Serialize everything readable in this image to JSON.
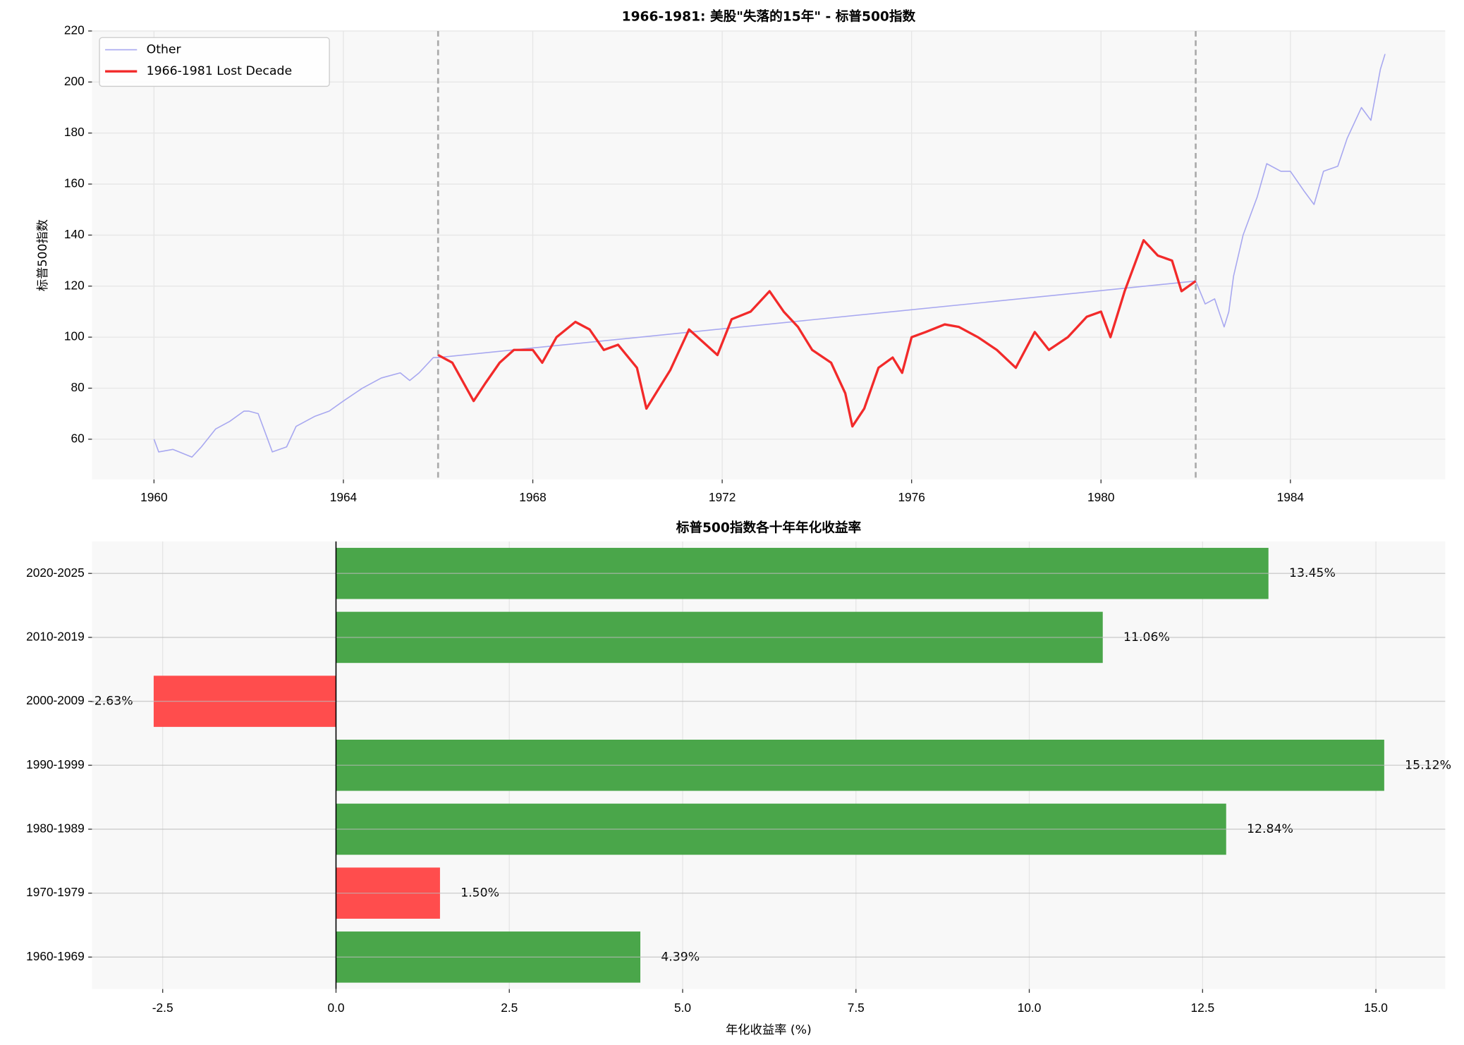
{
  "chart_data": [
    {
      "type": "line",
      "title": "1966-1981: 美股\"失落的15年\" - 标普500指数",
      "ylabel": "标普500指数",
      "xlim": [
        1958.69,
        1987.27
      ],
      "xticks": [
        1960,
        1964,
        1968,
        1972,
        1976,
        1980,
        1984
      ],
      "ylim": [
        44.2,
        220
      ],
      "yticks": [
        60,
        80,
        100,
        120,
        140,
        160,
        180,
        200,
        220
      ],
      "grid": true,
      "legend": "upper left",
      "vlines": [
        1966,
        1982
      ],
      "series": [
        {
          "name": "Other",
          "color": "#a8a8f0",
          "x": [
            1960.0,
            1960.1,
            1960.4,
            1960.8,
            1961.0,
            1961.3,
            1961.6,
            1961.9,
            1962.0,
            1962.2,
            1962.4,
            1962.5,
            1962.8,
            1963.0,
            1963.4,
            1963.7,
            1964.0,
            1964.4,
            1964.8,
            1965.2,
            1965.4,
            1965.6,
            1965.9,
            1966.0,
            1982.0,
            1982.2,
            1982.4,
            1982.6,
            1982.7,
            1982.8,
            1983.0,
            1983.3,
            1983.5,
            1983.8,
            1984.0,
            1984.3,
            1984.5,
            1984.7,
            1985.0,
            1985.2,
            1985.5,
            1985.7,
            1985.9,
            1986.0
          ],
          "values": [
            60,
            55,
            56,
            53,
            57,
            64,
            67,
            71,
            71,
            70,
            60,
            55,
            57,
            65,
            69,
            71,
            75,
            80,
            84,
            86,
            83,
            86,
            92,
            92,
            122,
            113,
            115,
            104,
            110,
            124,
            140,
            155,
            168,
            165,
            165,
            157,
            152,
            165,
            167,
            178,
            190,
            185,
            205,
            211
          ]
        },
        {
          "name": "1966-1981 Lost Decade",
          "color": "#f22a2a",
          "x": [
            1966.0,
            1966.3,
            1966.6,
            1966.75,
            1967.0,
            1967.3,
            1967.6,
            1968.0,
            1968.2,
            1968.5,
            1968.9,
            1969.2,
            1969.5,
            1969.8,
            1970.2,
            1970.4,
            1970.6,
            1970.9,
            1971.3,
            1971.6,
            1971.9,
            1972.2,
            1972.6,
            1973.0,
            1973.3,
            1973.6,
            1973.9,
            1974.3,
            1974.6,
            1974.75,
            1975.0,
            1975.3,
            1975.6,
            1975.8,
            1976.0,
            1976.3,
            1976.7,
            1977.0,
            1977.4,
            1977.8,
            1978.2,
            1978.6,
            1978.9,
            1979.3,
            1979.7,
            1980.0,
            1980.2,
            1980.5,
            1980.9,
            1981.2,
            1981.5,
            1981.7,
            1982.0
          ],
          "values": [
            93,
            90,
            80,
            75,
            82,
            90,
            95,
            95,
            90,
            100,
            106,
            103,
            95,
            97,
            88,
            72,
            78,
            87,
            103,
            98,
            93,
            107,
            110,
            118,
            110,
            104,
            95,
            90,
            78,
            65,
            72,
            88,
            92,
            86,
            100,
            102,
            105,
            104,
            100,
            95,
            88,
            102,
            95,
            100,
            108,
            110,
            100,
            118,
            138,
            132,
            130,
            118,
            122
          ]
        }
      ]
    },
    {
      "type": "barh",
      "title": "标普500指数各十年年化收益率",
      "xlabel": "年化收益率 (%)",
      "xlim": [
        -3.52,
        16.0
      ],
      "xticks": [
        -2.5,
        {
          "value": 0,
          "label": "0.0"
        },
        2.5,
        {
          "value": 5,
          "label": "5.0"
        },
        7.5,
        {
          "value": 10,
          "label": "10.0"
        },
        12.5,
        {
          "value": 15,
          "label": "15.0"
        }
      ],
      "grid": true,
      "categories": [
        "1960-1969",
        "1970-1979",
        "1980-1989",
        "1990-1999",
        "2000-2009",
        "2010-2019",
        "2020-2025"
      ],
      "values": [
        4.39,
        1.5,
        12.84,
        15.12,
        -2.63,
        11.06,
        13.45
      ],
      "value_labels": [
        "4.39%",
        "1.50%",
        "12.84%",
        "15.12%",
        "-2.63%",
        "11.06%",
        "13.45%"
      ],
      "colors": [
        "#4aa64a",
        "#ff4d4d",
        "#4aa64a",
        "#4aa64a",
        "#ff4d4d",
        "#4aa64a",
        "#4aa64a"
      ]
    }
  ]
}
